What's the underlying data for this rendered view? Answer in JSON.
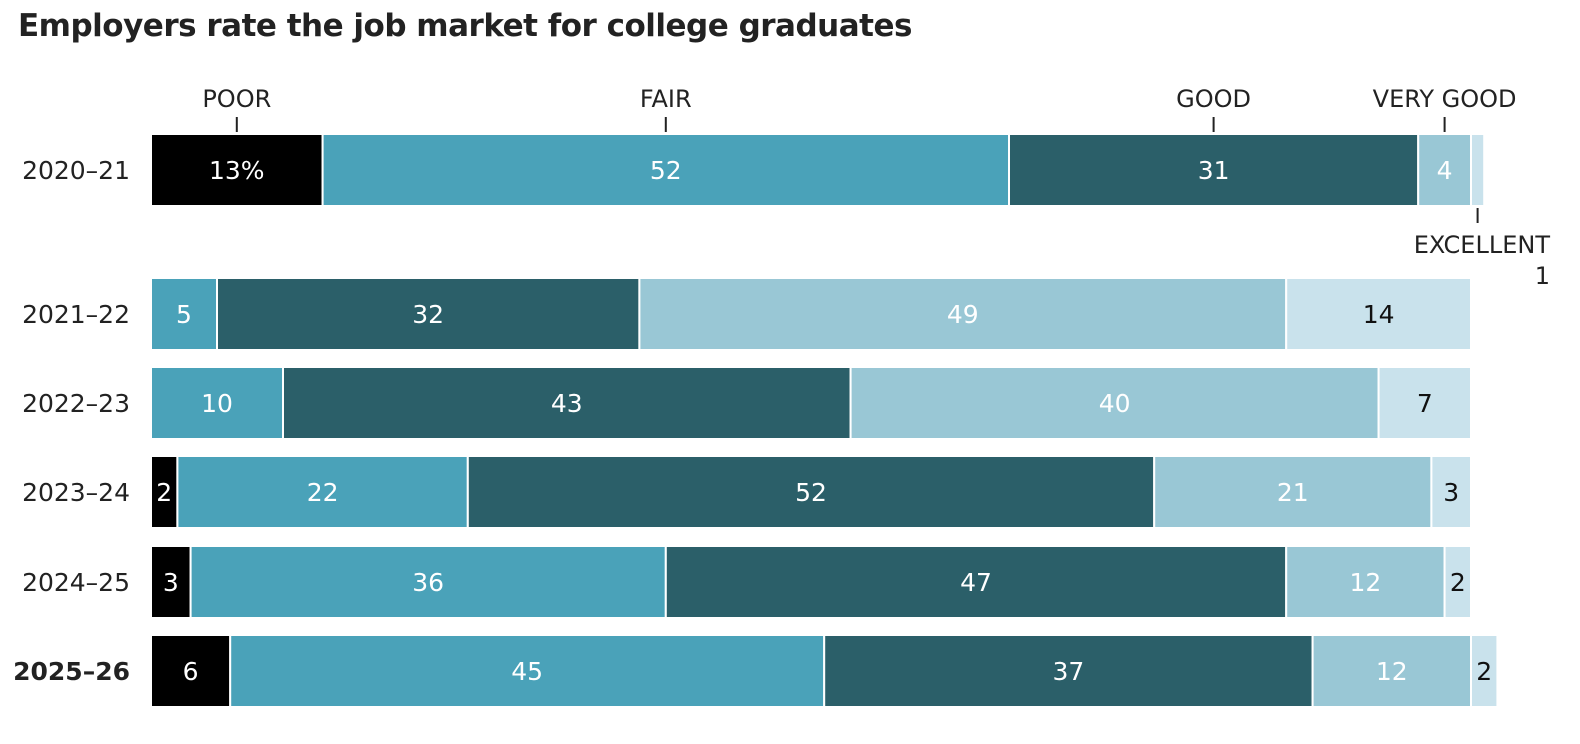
{
  "chart_data": {
    "type": "bar",
    "orientation": "horizontal",
    "stacked": true,
    "title": "Employers rate the job market for college graduates",
    "xlim": [
      0,
      100
    ],
    "grid": false,
    "categories": [
      "2020–21",
      "2021–22",
      "2022–23",
      "2023–24",
      "2024–25",
      "2025–26"
    ],
    "highlight_category": "2025–26",
    "series": [
      {
        "name": "POOR",
        "values": [
          13,
          0,
          0,
          2,
          3,
          6
        ]
      },
      {
        "name": "FAIR",
        "values": [
          52,
          5,
          10,
          22,
          36,
          45
        ]
      },
      {
        "name": "GOOD",
        "values": [
          31,
          32,
          43,
          52,
          47,
          37
        ]
      },
      {
        "name": "VERY GOOD",
        "values": [
          4,
          49,
          40,
          21,
          12,
          12
        ]
      },
      {
        "name": "EXCELLENT",
        "values": [
          1,
          14,
          7,
          3,
          2,
          2
        ]
      }
    ],
    "value_labels": [
      [
        "13%",
        "52",
        "31",
        "4",
        ""
      ],
      [
        "",
        "5",
        "32",
        "49",
        "14"
      ],
      [
        "",
        "10",
        "43",
        "40",
        "7"
      ],
      [
        "2",
        "22",
        "52",
        "21",
        "3"
      ],
      [
        "3",
        "36",
        "47",
        "12",
        "2"
      ],
      [
        "6",
        "45",
        "37",
        "12",
        "2"
      ]
    ],
    "legend_callouts": {
      "poor": "POOR",
      "fair": "FAIR",
      "good": "GOOD",
      "very_good": "VERY GOOD",
      "excellent": "EXCELLENT",
      "excellent_value": "1"
    },
    "colors": {
      "POOR": "#000000",
      "FAIR": "#4aa2b9",
      "GOOD": "#2b5f69",
      "VERY GOOD": "#99c7d5",
      "EXCELLENT": "#c9e2ec"
    }
  }
}
